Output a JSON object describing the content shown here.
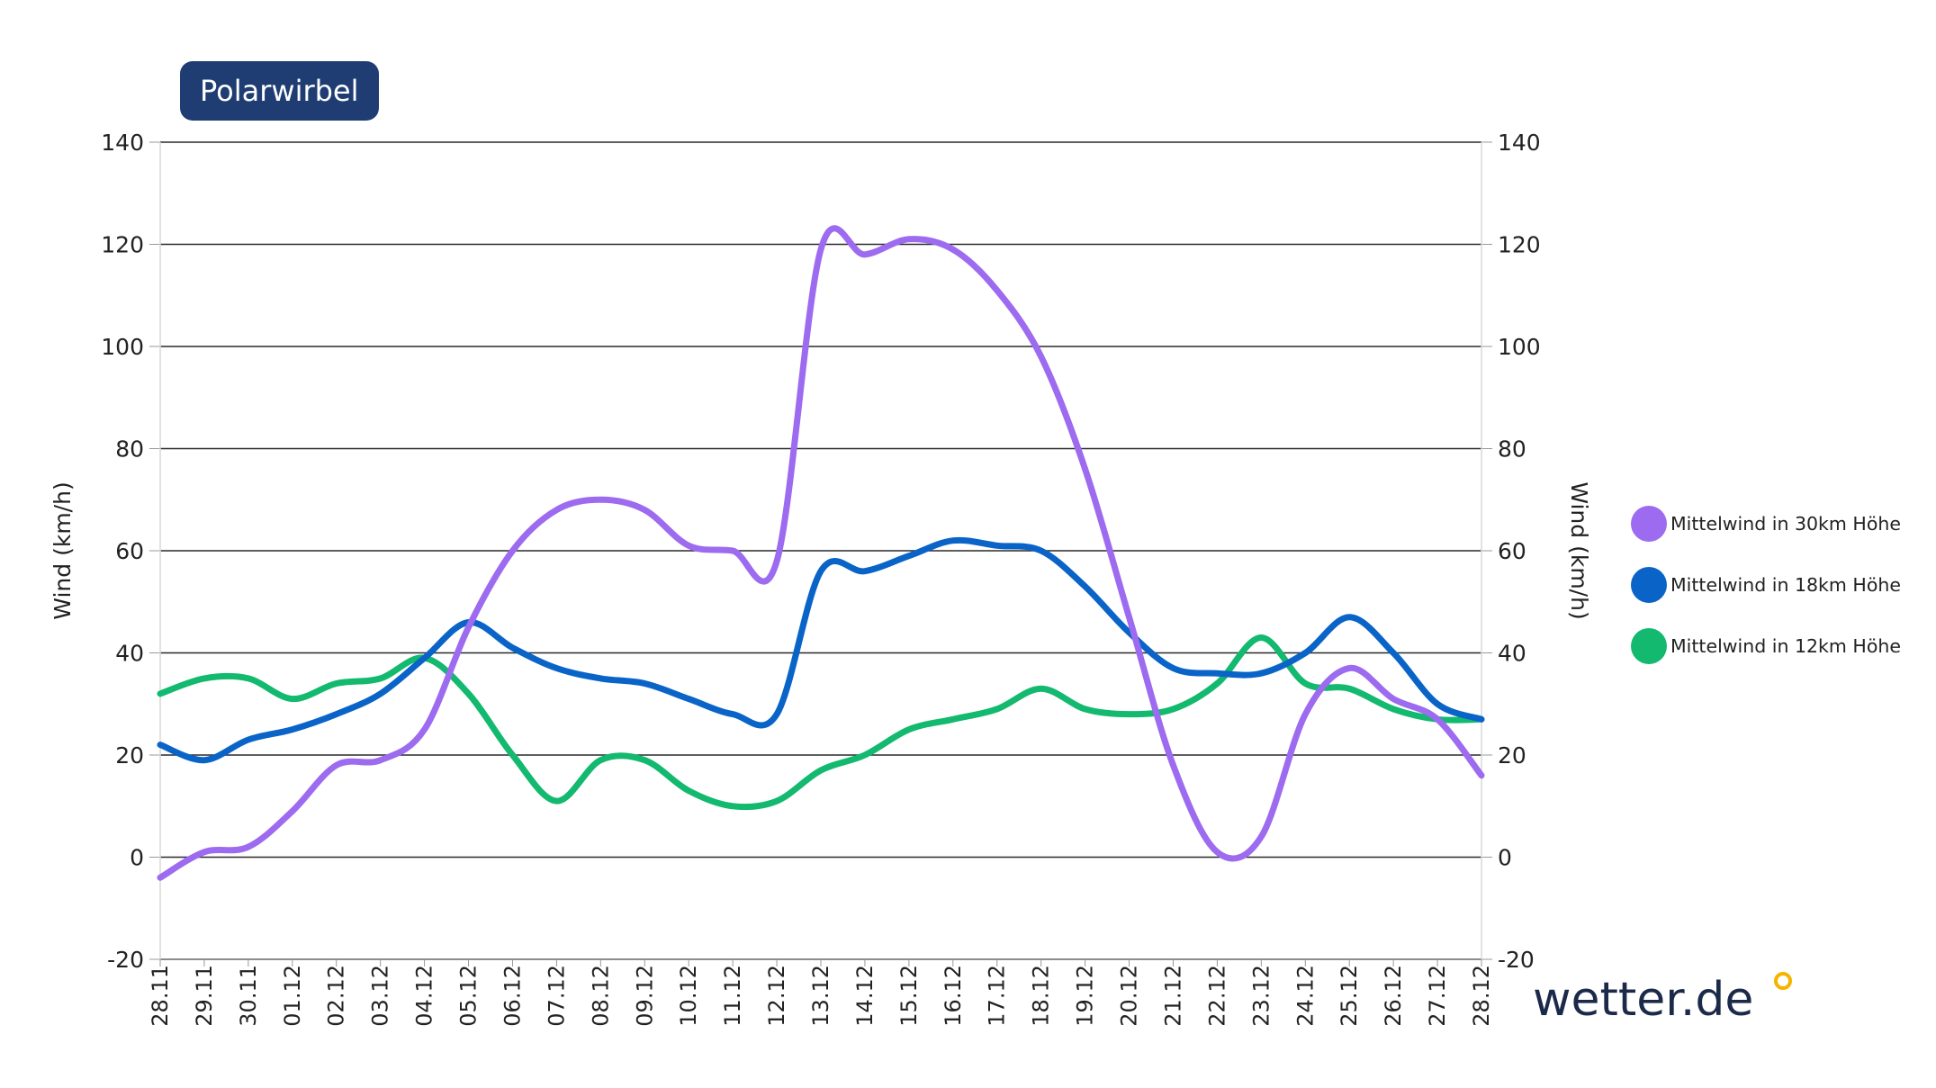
{
  "title": "Polarwirbel",
  "brand": "wetter.de",
  "chart_data": {
    "type": "line",
    "title": "Polarwirbel",
    "ylabel": "Wind (km/h)",
    "ylabel_right": "Wind (km/h)",
    "ylim": [
      -20,
      140
    ],
    "yticks": [
      -20,
      0,
      20,
      40,
      60,
      80,
      100,
      120,
      140
    ],
    "grid": true,
    "legend_position": "right",
    "x": [
      "28.11",
      "29.11",
      "30.11",
      "01.12",
      "02.12",
      "03.12",
      "04.12",
      "05.12",
      "06.12",
      "07.12",
      "08.12",
      "09.12",
      "10.12",
      "11.12",
      "12.12",
      "13.12",
      "14.12",
      "15.12",
      "16.12",
      "17.12",
      "18.12",
      "19.12",
      "20.12",
      "21.12",
      "22.12",
      "23.12",
      "24.12",
      "25.12",
      "26.12",
      "27.12",
      "28.12"
    ],
    "series": [
      {
        "name": "Mittelwind in 30km Höhe",
        "color": "#9d6bf0",
        "values": [
          -4,
          1,
          2,
          9,
          18,
          19,
          25,
          45,
          60,
          68,
          70,
          68,
          61,
          60,
          58,
          119,
          118,
          121,
          119,
          111,
          98,
          76,
          47,
          18,
          1,
          4,
          28,
          37,
          31,
          27,
          16
        ]
      },
      {
        "name": "Mittelwind in 18km Höhe",
        "color": "#0a64c8",
        "values": [
          22,
          19,
          23,
          25,
          28,
          32,
          39,
          46,
          41,
          37,
          35,
          34,
          31,
          28,
          28,
          56,
          56,
          59,
          62,
          61,
          60,
          53,
          44,
          37,
          36,
          36,
          40,
          47,
          40,
          30,
          27
        ]
      },
      {
        "name": "Mittelwind in 12km Höhe",
        "color": "#12b96e",
        "values": [
          32,
          35,
          35,
          31,
          34,
          35,
          39,
          32,
          20,
          11,
          19,
          19,
          13,
          10,
          11,
          17,
          20,
          25,
          27,
          29,
          33,
          29,
          28,
          29,
          34,
          43,
          34,
          33,
          29,
          27,
          27
        ]
      }
    ]
  }
}
